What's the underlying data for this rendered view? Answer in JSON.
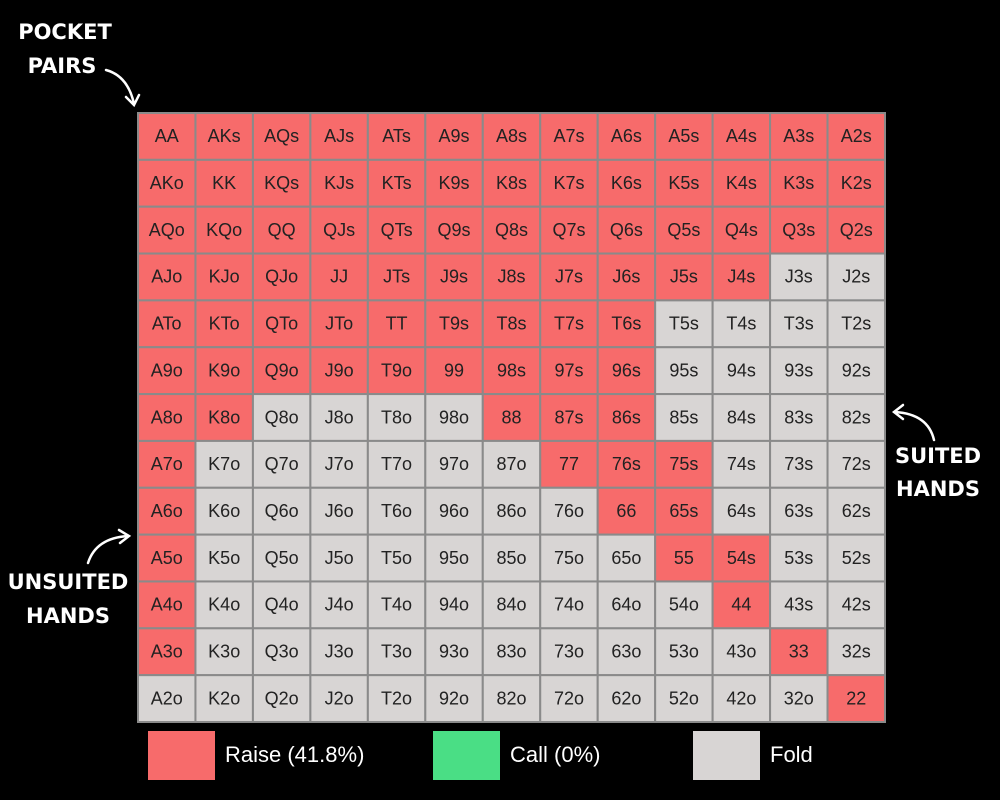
{
  "annotations": {
    "pocket_pairs": [
      "POCKET",
      "PAIRS"
    ],
    "suited_hands": [
      "SUITED",
      "HANDS"
    ],
    "unsuited_hands": [
      "UNSUITED",
      "HANDS"
    ]
  },
  "grid": {
    "rows": [
      [
        "AA",
        "AKs",
        "AQs",
        "AJs",
        "ATs",
        "A9s",
        "A8s",
        "A7s",
        "A6s",
        "A5s",
        "A4s",
        "A3s",
        "A2s"
      ],
      [
        "AKo",
        "KK",
        "KQs",
        "KJs",
        "KTs",
        "K9s",
        "K8s",
        "K7s",
        "K6s",
        "K5s",
        "K4s",
        "K3s",
        "K2s"
      ],
      [
        "AQo",
        "KQo",
        "QQ",
        "QJs",
        "QTs",
        "Q9s",
        "Q8s",
        "Q7s",
        "Q6s",
        "Q5s",
        "Q4s",
        "Q3s",
        "Q2s"
      ],
      [
        "AJo",
        "KJo",
        "QJo",
        "JJ",
        "JTs",
        "J9s",
        "J8s",
        "J7s",
        "J6s",
        "J5s",
        "J4s",
        "J3s",
        "J2s"
      ],
      [
        "ATo",
        "KTo",
        "QTo",
        "JTo",
        "TT",
        "T9s",
        "T8s",
        "T7s",
        "T6s",
        "T5s",
        "T4s",
        "T3s",
        "T2s"
      ],
      [
        "A9o",
        "K9o",
        "Q9o",
        "J9o",
        "T9o",
        "99",
        "98s",
        "97s",
        "96s",
        "95s",
        "94s",
        "93s",
        "92s"
      ],
      [
        "A8o",
        "K8o",
        "Q8o",
        "J8o",
        "T8o",
        "98o",
        "88",
        "87s",
        "86s",
        "85s",
        "84s",
        "83s",
        "82s"
      ],
      [
        "A7o",
        "K7o",
        "Q7o",
        "J7o",
        "T7o",
        "97o",
        "87o",
        "77",
        "76s",
        "75s",
        "74s",
        "73s",
        "72s"
      ],
      [
        "A6o",
        "K6o",
        "Q6o",
        "J6o",
        "T6o",
        "96o",
        "86o",
        "76o",
        "66",
        "65s",
        "64s",
        "63s",
        "62s"
      ],
      [
        "A5o",
        "K5o",
        "Q5o",
        "J5o",
        "T5o",
        "95o",
        "85o",
        "75o",
        "65o",
        "55",
        "54s",
        "53s",
        "52s"
      ],
      [
        "A4o",
        "K4o",
        "Q4o",
        "J4o",
        "T4o",
        "94o",
        "84o",
        "74o",
        "64o",
        "54o",
        "44",
        "43s",
        "42s"
      ],
      [
        "A3o",
        "K3o",
        "Q3o",
        "J3o",
        "T3o",
        "93o",
        "83o",
        "73o",
        "63o",
        "53o",
        "43o",
        "33",
        "32s"
      ],
      [
        "A2o",
        "K2o",
        "Q2o",
        "J2o",
        "T2o",
        "92o",
        "82o",
        "72o",
        "62o",
        "52o",
        "42o",
        "32o",
        "22"
      ]
    ],
    "actions": [
      [
        0,
        0,
        0,
        0,
        0,
        0,
        0,
        0,
        0,
        0,
        0,
        0,
        0
      ],
      [
        0,
        0,
        0,
        0,
        0,
        0,
        0,
        0,
        0,
        0,
        0,
        0,
        0
      ],
      [
        0,
        0,
        0,
        0,
        0,
        0,
        0,
        0,
        0,
        0,
        0,
        0,
        0
      ],
      [
        0,
        0,
        0,
        0,
        0,
        0,
        0,
        0,
        0,
        0,
        0,
        2,
        2
      ],
      [
        0,
        0,
        0,
        0,
        0,
        0,
        0,
        0,
        0,
        2,
        2,
        2,
        2
      ],
      [
        0,
        0,
        0,
        0,
        0,
        0,
        0,
        0,
        0,
        2,
        2,
        2,
        2
      ],
      [
        0,
        0,
        2,
        2,
        2,
        2,
        0,
        0,
        0,
        2,
        2,
        2,
        2
      ],
      [
        0,
        2,
        2,
        2,
        2,
        2,
        2,
        0,
        0,
        0,
        2,
        2,
        2
      ],
      [
        0,
        2,
        2,
        2,
        2,
        2,
        2,
        2,
        0,
        0,
        2,
        2,
        2
      ],
      [
        0,
        2,
        2,
        2,
        2,
        2,
        2,
        2,
        2,
        0,
        0,
        2,
        2
      ],
      [
        0,
        2,
        2,
        2,
        2,
        2,
        2,
        2,
        2,
        2,
        0,
        2,
        2
      ],
      [
        0,
        2,
        2,
        2,
        2,
        2,
        2,
        2,
        2,
        2,
        2,
        0,
        2
      ],
      [
        2,
        2,
        2,
        2,
        2,
        2,
        2,
        2,
        2,
        2,
        2,
        2,
        0
      ]
    ]
  },
  "legend": [
    {
      "label": "Raise (41.8%)",
      "color": "#f76b6b"
    },
    {
      "label": "Call (0%)",
      "color": "#4ade85"
    },
    {
      "label": "Fold",
      "color": "#d8d5d4"
    }
  ]
}
